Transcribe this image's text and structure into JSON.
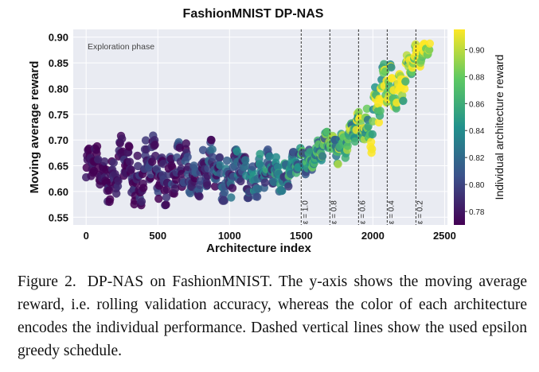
{
  "chart_data": {
    "type": "scatter",
    "title": "FashionMNIST DP-NAS",
    "xlabel": "Architecture index",
    "ylabel": "Moving average reward",
    "colorbar_label": "Individual architecture reward",
    "xlim": [
      -90,
      2520
    ],
    "ylim": [
      0.535,
      0.915
    ],
    "x_ticks": [
      0,
      500,
      1000,
      1500,
      2000,
      2500
    ],
    "y_ticks": [
      0.55,
      0.6,
      0.65,
      0.7,
      0.75,
      0.8,
      0.85,
      0.9
    ],
    "y_tick_labels": [
      "0.55",
      "0.60",
      "0.65",
      "0.70",
      "0.75",
      "0.80",
      "0.85",
      "0.90"
    ],
    "colorbar_range": [
      0.77,
      0.915
    ],
    "colorbar_ticks": [
      0.78,
      0.8,
      0.82,
      0.84,
      0.86,
      0.88,
      0.9
    ],
    "colorbar_tick_labels": [
      "0.78",
      "0.80",
      "0.82",
      "0.84",
      "0.86",
      "0.88",
      "0.90"
    ],
    "colormap": "viridis",
    "grid": true,
    "annotation": "Exploration phase",
    "epsilon_lines": [
      {
        "x": 1500,
        "label": "ε = 1.0"
      },
      {
        "x": 1700,
        "label": "ε = 0.8"
      },
      {
        "x": 1900,
        "label": "ε = 0.6"
      },
      {
        "x": 2100,
        "label": "ε = 0.4"
      },
      {
        "x": 2300,
        "label": "ε = 0.2"
      }
    ],
    "series_trend": {
      "x": [
        0,
        150,
        300,
        450,
        600,
        750,
        900,
        1050,
        1200,
        1350,
        1450,
        1500,
        1600,
        1700,
        1800,
        1900,
        2000,
        2100,
        2200,
        2300,
        2400
      ],
      "y_mid": [
        0.645,
        0.635,
        0.64,
        0.635,
        0.635,
        0.635,
        0.635,
        0.632,
        0.633,
        0.638,
        0.645,
        0.655,
        0.675,
        0.69,
        0.7,
        0.715,
        0.75,
        0.8,
        0.815,
        0.855,
        0.89
      ],
      "y_low": [
        0.6,
        0.58,
        0.58,
        0.56,
        0.58,
        0.58,
        0.58,
        0.585,
        0.59,
        0.6,
        0.61,
        0.615,
        0.63,
        0.64,
        0.655,
        0.665,
        0.675,
        0.73,
        0.76,
        0.81,
        0.87
      ],
      "y_high": [
        0.7,
        0.7,
        0.73,
        0.71,
        0.72,
        0.71,
        0.7,
        0.7,
        0.71,
        0.69,
        0.68,
        0.685,
        0.7,
        0.72,
        0.74,
        0.76,
        0.84,
        0.87,
        0.86,
        0.89,
        0.9
      ]
    }
  },
  "caption": {
    "label": "Figure 2.",
    "text": "DP-NAS on FashionMNIST. The y-axis shows the moving average reward, i.e. rolling validation accuracy, whereas the color of each architecture encodes the individual performance. Dashed vertical lines show the used epsilon greedy schedule."
  },
  "colors": {
    "plot_bg": "#e9ebf2",
    "grid": "#ffffff",
    "dashed_line": "#333333"
  }
}
